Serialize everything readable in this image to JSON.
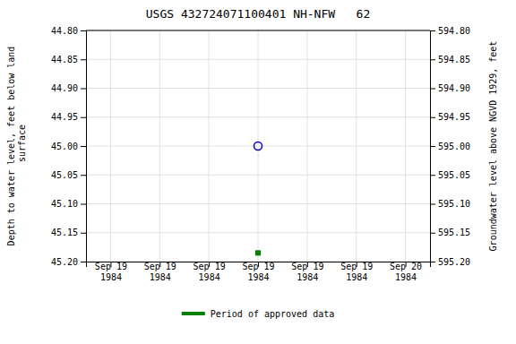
{
  "chart_data": {
    "type": "scatter",
    "title": "USGS 432724071100401 NH-NFW   62",
    "y_label": "Depth to water level, feet below land\n surface",
    "y2_label": "Groundwater level above NGVD 1929, feet",
    "categories": [
      "Sep 19\n1984",
      "Sep 19\n1984",
      "Sep 19\n1984",
      "Sep 19\n1984",
      "Sep 19\n1984",
      "Sep 19\n1984",
      "Sep 20\n1984"
    ],
    "series": [
      {
        "color": "#0000cc",
        "marker": "open-circle",
        "values": [
          null,
          null,
          null,
          45.0,
          null,
          null,
          null
        ]
      },
      {
        "name": "Period of approved data",
        "color": "#008000",
        "marker": "square",
        "values": [
          null,
          null,
          null,
          45.185,
          null,
          null,
          null
        ]
      }
    ],
    "ylim": [
      45.2,
      44.8
    ],
    "yticks": [
      {
        "value": 44.8,
        "label": "44.80"
      },
      {
        "value": 44.85,
        "label": "44.85"
      },
      {
        "value": 44.9,
        "label": "44.90"
      },
      {
        "value": 44.95,
        "label": "44.95"
      },
      {
        "value": 45.0,
        "label": "45.00"
      },
      {
        "value": 45.05,
        "label": "45.05"
      },
      {
        "value": 45.1,
        "label": "45.10"
      },
      {
        "value": 45.15,
        "label": "45.15"
      },
      {
        "value": 45.2,
        "label": "45.20"
      }
    ],
    "y2lim": [
      595.2,
      594.8
    ],
    "y2ticks": [
      {
        "value": 595.2,
        "label": "595.20"
      },
      {
        "value": 595.15,
        "label": "595.15"
      },
      {
        "value": 595.1,
        "label": "595.10"
      },
      {
        "value": 595.05,
        "label": "595.05"
      },
      {
        "value": 595.0,
        "label": "595.00"
      },
      {
        "value": 594.95,
        "label": "594.95"
      },
      {
        "value": 594.9,
        "label": "594.90"
      },
      {
        "value": 594.85,
        "label": "594.85"
      },
      {
        "value": 594.8,
        "label": "594.80"
      }
    ],
    "grid": true,
    "legend": "bottom"
  }
}
